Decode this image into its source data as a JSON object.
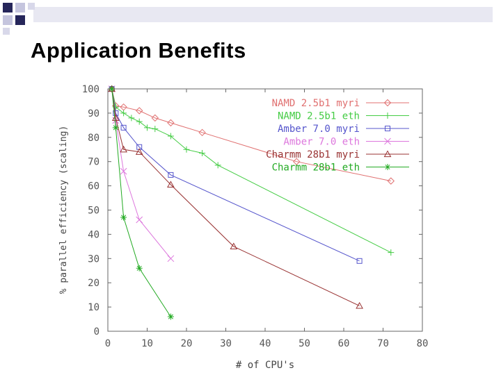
{
  "slide": {
    "title": "Application Benefits"
  },
  "colors": {
    "deco_dark": "#26265a",
    "deco_light": "#c5c5de",
    "deco_band": "#e8e8f2"
  },
  "chart_data": {
    "type": "line",
    "title": "",
    "xlabel": "# of CPU's",
    "ylabel": "% parallel efficiency (scaling)",
    "xlim": [
      0,
      80
    ],
    "ylim": [
      0,
      100
    ],
    "xticks": [
      0,
      10,
      20,
      30,
      40,
      50,
      60,
      70,
      80
    ],
    "yticks": [
      0,
      10,
      20,
      30,
      40,
      50,
      60,
      70,
      80,
      90,
      100
    ],
    "grid": false,
    "legend_position": "top-right",
    "series": [
      {
        "name": "NAMD 2.5b1 myri",
        "color": "#e07070",
        "marker": "diamond",
        "x": [
          1,
          2,
          4,
          8,
          12,
          16,
          24,
          48,
          72
        ],
        "y": [
          100,
          93,
          92.5,
          91,
          88,
          86,
          82,
          70,
          62
        ]
      },
      {
        "name": "NAMD 2.5b1 eth",
        "color": "#44cc44",
        "marker": "plus",
        "x": [
          1,
          2,
          4,
          6,
          8,
          10,
          12,
          16,
          20,
          24,
          28,
          72
        ],
        "y": [
          100,
          92.5,
          90,
          88,
          86.5,
          84,
          83.5,
          80.5,
          75,
          73.5,
          68.5,
          32.5
        ]
      },
      {
        "name": "Amber 7.0 myri",
        "color": "#5555cc",
        "marker": "square",
        "x": [
          1,
          2,
          4,
          8,
          16,
          64
        ],
        "y": [
          100,
          90,
          84,
          76,
          64.5,
          29
        ]
      },
      {
        "name": "Amber 7.0 eth",
        "color": "#dd77dd",
        "marker": "cross",
        "x": [
          1,
          2,
          4,
          8,
          16
        ],
        "y": [
          100,
          87,
          66,
          46,
          30
        ]
      },
      {
        "name": "Charmm 28b1 myri",
        "color": "#993333",
        "marker": "triangle",
        "x": [
          1,
          2,
          4,
          8,
          16,
          32,
          64
        ],
        "y": [
          100,
          88,
          75,
          74,
          60.5,
          35,
          10.5
        ]
      },
      {
        "name": "Charmm 28b1 eth",
        "color": "#22aa22",
        "marker": "star",
        "x": [
          1,
          2,
          4,
          8,
          16
        ],
        "y": [
          100,
          84,
          47,
          26,
          6
        ]
      }
    ]
  }
}
